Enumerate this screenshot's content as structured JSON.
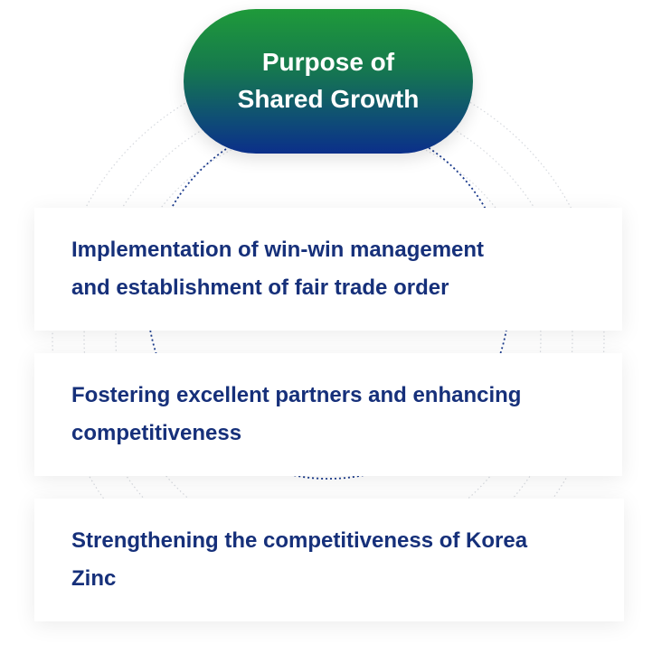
{
  "title": {
    "line1": "Purpose of",
    "line2": "Shared Growth"
  },
  "items": [
    {
      "line1": "Implementation of win-win management",
      "line2": "and establishment of fair trade order"
    },
    {
      "line1": "Fostering excellent partners and enhancing",
      "line2": "competitiveness"
    },
    {
      "line1": "Strengthening the competitiveness of Korea",
      "line2": "Zinc"
    }
  ],
  "colors": {
    "title_gradient_top": "#1f9a3a",
    "title_gradient_bottom": "#0b2f8a",
    "item_text": "#16307a",
    "dotted_circle": "#1a3a8c"
  }
}
